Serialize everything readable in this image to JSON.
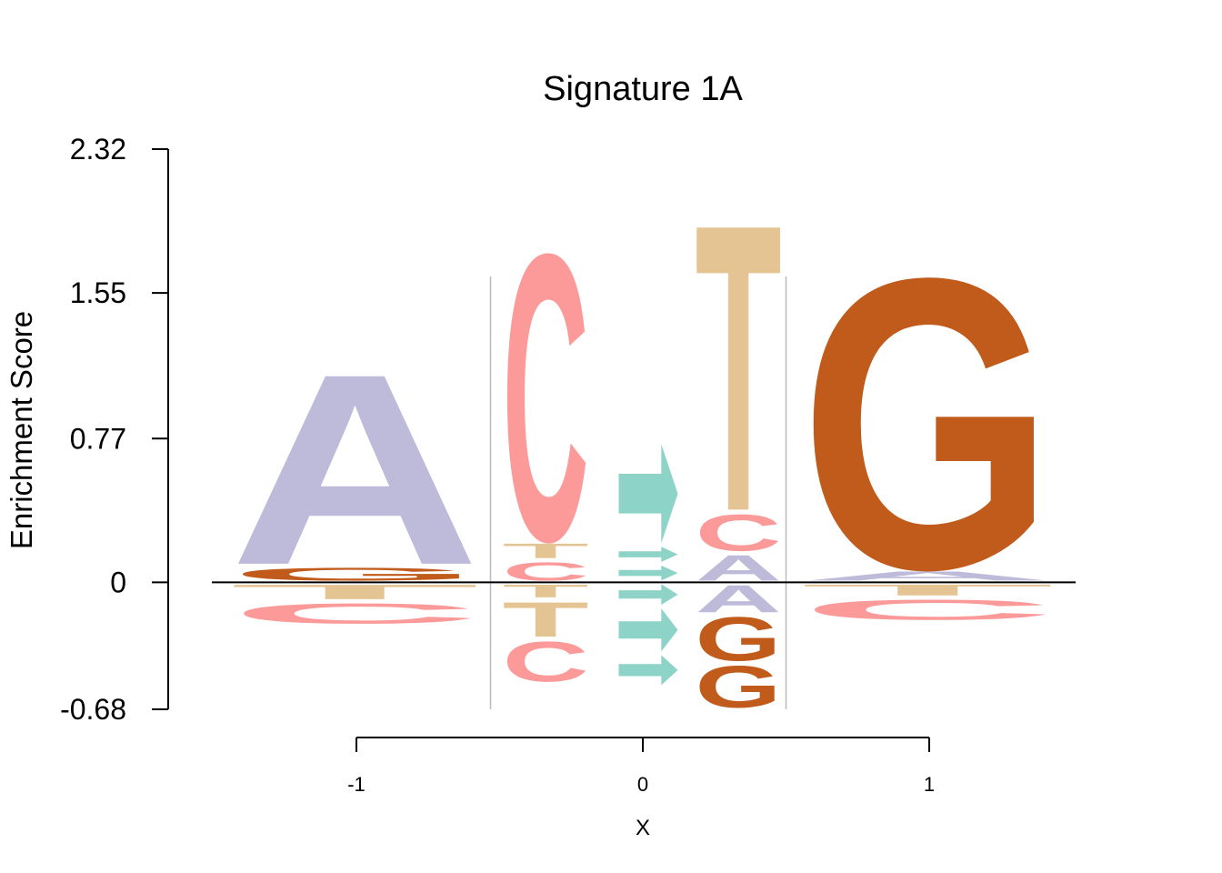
{
  "chart_data": {
    "type": "sequence-logo",
    "title": "Signature 1A",
    "xlabel": "X",
    "ylabel": "Enrichment Score",
    "ylim": [
      -0.68,
      2.32
    ],
    "y_ticks": [
      "2.32",
      "1.55",
      "0.77",
      "0",
      "-0.68"
    ],
    "x_ticks": [
      "-1",
      "0",
      "1"
    ],
    "colors": {
      "A": "#BEBADA",
      "C": "#FB9A99",
      "G": "#C15B1C",
      "T": "#E5C494",
      "arrow": "#8DD3C7",
      "divider": "#BBBBBB"
    },
    "positions": [
      {
        "x": -1,
        "label": "-1",
        "positive": [
          {
            "base": "G",
            "value": 0.09
          },
          {
            "base": "A",
            "value": 1.07
          }
        ],
        "negative": [
          {
            "base": "T",
            "value": 0.1
          },
          {
            "base": "C",
            "value": 0.13
          }
        ]
      },
      {
        "x": -0.33,
        "label": "",
        "positive": [
          {
            "base": "C",
            "value": 0.12
          },
          {
            "base": "T",
            "value": 0.1
          },
          {
            "base": "C",
            "value": 1.6
          }
        ],
        "negative": [
          {
            "base": "T",
            "value": 0.09
          },
          {
            "base": "T",
            "value": 0.21
          },
          {
            "base": "C",
            "value": 0.24
          }
        ]
      },
      {
        "x": 0,
        "label": "0",
        "positive": [
          {
            "base": "arrow",
            "value": 0.1
          },
          {
            "base": "arrow",
            "value": 0.1
          },
          {
            "base": "arrow",
            "value": 0.55
          }
        ],
        "negative": [
          {
            "base": "arrow",
            "value": 0.13
          },
          {
            "base": "arrow",
            "value": 0.25
          },
          {
            "base": "arrow",
            "value": 0.18
          }
        ]
      },
      {
        "x": 0.33,
        "label": "",
        "positive": [
          {
            "base": "A",
            "value": 0.16
          },
          {
            "base": "C",
            "value": 0.22
          },
          {
            "base": "T",
            "value": 1.6
          }
        ],
        "negative": [
          {
            "base": "A",
            "value": 0.17
          },
          {
            "base": "G",
            "value": 0.26
          },
          {
            "base": "G",
            "value": 0.25
          }
        ]
      },
      {
        "x": 1,
        "label": "1",
        "positive": [
          {
            "base": "A",
            "value": 0.07
          },
          {
            "base": "G",
            "value": 1.62
          }
        ],
        "negative": [
          {
            "base": "T",
            "value": 0.08
          },
          {
            "base": "C",
            "value": 0.13
          }
        ]
      }
    ],
    "dividers": [
      -0.5,
      0.5
    ],
    "grid": false,
    "legend": "none"
  }
}
